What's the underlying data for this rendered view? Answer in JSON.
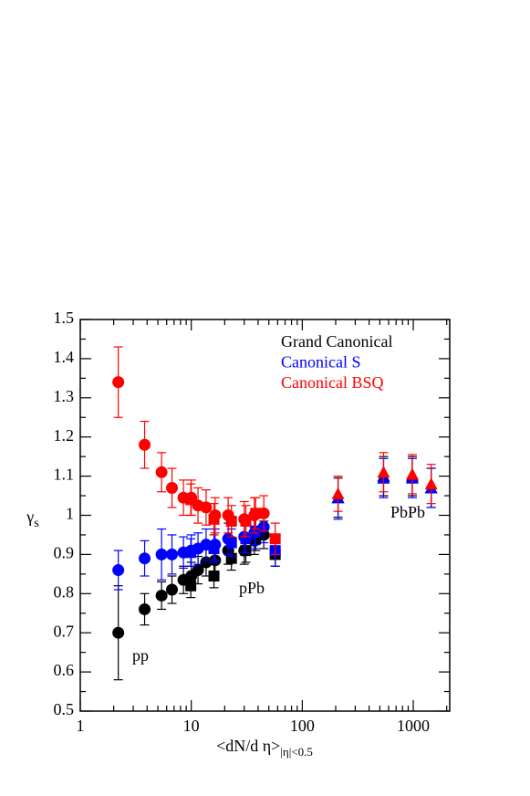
{
  "chart_data": {
    "type": "scatter",
    "xlabel": {
      "text": "<dN/d η>",
      "subscript": "|η|<0.5"
    },
    "ylabel": {
      "text": "γ",
      "subscript": "s"
    },
    "xscale": "log",
    "xlim": [
      1,
      2130
    ],
    "xticks": [
      1,
      10,
      100,
      1000
    ],
    "ylim": [
      0.5,
      1.5
    ],
    "yticks": [
      0.5,
      0.6,
      0.7,
      0.8,
      0.9,
      1,
      1.1,
      1.2,
      1.3,
      1.4,
      1.5
    ],
    "legend": "upper right",
    "annotations": [
      "pp",
      "pPb",
      "PbPb"
    ],
    "series": [
      {
        "name": "Grand Canonical",
        "color": "#000000",
        "x": [
          2.2,
          3.8,
          5.4,
          6.7,
          8.5,
          10,
          11.5,
          13.6,
          16.4,
          21.5,
          30,
          37,
          45,
          9.9,
          16,
          23,
          31,
          38,
          57,
          210,
          540,
          980,
          1450
        ],
        "values": [
          0.7,
          0.76,
          0.795,
          0.81,
          0.835,
          0.845,
          0.86,
          0.88,
          0.885,
          0.91,
          0.91,
          0.935,
          0.95,
          0.82,
          0.845,
          0.89,
          0.91,
          0.94,
          0.9,
          1.045,
          1.1,
          1.1,
          1.07
        ],
        "errors": [
          0.12,
          0.04,
          0.035,
          0.035,
          0.035,
          0.035,
          0.035,
          0.035,
          0.035,
          0.035,
          0.035,
          0.035,
          0.035,
          0.03,
          0.03,
          0.03,
          0.03,
          0.03,
          0.03,
          0.05,
          0.05,
          0.05,
          0.05
        ],
        "markers": [
          "circle",
          "circle",
          "circle",
          "circle",
          "circle",
          "circle",
          "circle",
          "circle",
          "circle",
          "circle",
          "circle",
          "circle",
          "circle",
          "square",
          "square",
          "square",
          "square",
          "square",
          "square",
          "triangle",
          "triangle",
          "triangle",
          "triangle"
        ]
      },
      {
        "name": "Canonical S",
        "color": "#0000ff",
        "x": [
          2.2,
          3.8,
          5.4,
          6.7,
          8.5,
          10,
          11.5,
          13.6,
          16.4,
          21.5,
          30,
          37,
          45,
          9.9,
          16,
          23,
          31,
          38,
          57,
          210,
          540,
          980,
          1450
        ],
        "values": [
          0.86,
          0.89,
          0.9,
          0.9,
          0.905,
          0.91,
          0.915,
          0.925,
          0.925,
          0.94,
          0.945,
          0.955,
          0.97,
          0.905,
          0.915,
          0.93,
          0.94,
          0.96,
          0.91,
          1.045,
          1.095,
          1.095,
          1.07
        ],
        "errors": [
          0.05,
          0.045,
          0.065,
          0.05,
          0.04,
          0.04,
          0.04,
          0.04,
          0.04,
          0.04,
          0.04,
          0.04,
          0.04,
          0.035,
          0.035,
          0.035,
          0.035,
          0.035,
          0.04,
          0.055,
          0.05,
          0.05,
          0.05
        ],
        "markers": [
          "circle",
          "circle",
          "circle",
          "circle",
          "circle",
          "circle",
          "circle",
          "circle",
          "circle",
          "circle",
          "circle",
          "circle",
          "circle",
          "square",
          "square",
          "square",
          "square",
          "square",
          "square",
          "triangle",
          "triangle",
          "triangle",
          "triangle"
        ]
      },
      {
        "name": "Canonical BSQ",
        "color": "#ff0000",
        "x": [
          2.2,
          3.8,
          5.4,
          6.7,
          8.5,
          10,
          11.5,
          13.6,
          16.4,
          21.5,
          30,
          37,
          45,
          9.9,
          16,
          23,
          31,
          38,
          57,
          210,
          540,
          980,
          1450
        ],
        "values": [
          1.34,
          1.18,
          1.11,
          1.07,
          1.045,
          1.045,
          1.025,
          1.02,
          1.0,
          1.0,
          0.99,
          1.0,
          1.005,
          1.04,
          0.99,
          0.985,
          0.985,
          1.005,
          0.94,
          1.055,
          1.11,
          1.105,
          1.08
        ],
        "errors": [
          0.09,
          0.06,
          0.05,
          0.05,
          0.045,
          0.045,
          0.045,
          0.045,
          0.045,
          0.045,
          0.045,
          0.045,
          0.045,
          0.04,
          0.04,
          0.04,
          0.04,
          0.04,
          0.04,
          0.045,
          0.05,
          0.05,
          0.05
        ],
        "markers": [
          "circle",
          "circle",
          "circle",
          "circle",
          "circle",
          "circle",
          "circle",
          "circle",
          "circle",
          "circle",
          "circle",
          "circle",
          "circle",
          "square",
          "square",
          "square",
          "square",
          "square",
          "square",
          "triangle",
          "triangle",
          "triangle",
          "triangle"
        ]
      }
    ]
  }
}
